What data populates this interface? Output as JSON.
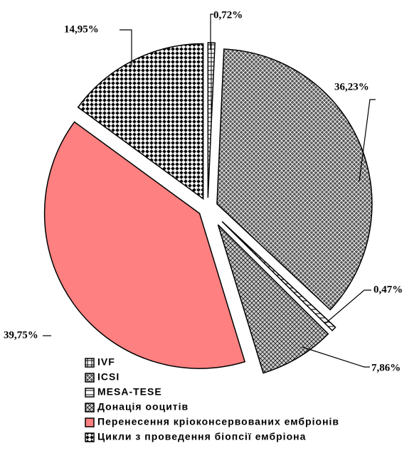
{
  "chart_data": {
    "type": "pie",
    "categories": [
      "IVF",
      "ICSI",
      "MESA-TESE",
      "Донація ооцитів",
      "Перенесення кріоконсервованих ембріонів",
      "Цикли з проведення біопсії ембріона"
    ],
    "values": [
      0.72,
      36.23,
      0.47,
      7.86,
      39.75,
      14.95
    ],
    "value_labels": [
      "0,72%",
      "36,23%",
      "0,47%",
      "7,86%",
      "39,75%",
      "14,95%"
    ],
    "colors": [
      "#ffffff",
      "#555555",
      "#ffffff",
      "#cccccc",
      "#ff8080",
      "#ffffff"
    ]
  }
}
